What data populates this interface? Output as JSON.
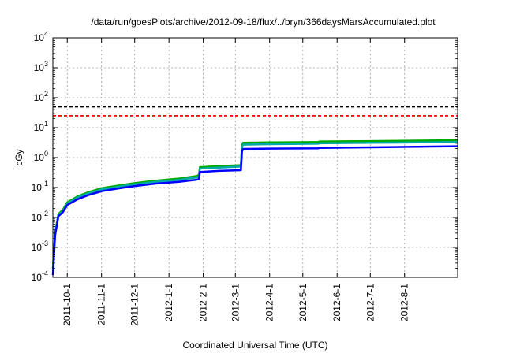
{
  "chart_data": {
    "type": "line",
    "title": "/data/run/goesPlots/archive/2012-09-18/flux/../bryn/366daysMarsAccumulated.plot",
    "xlabel": "Coordinated Universal Time (UTC)",
    "ylabel": "cGy",
    "x_range": [
      "2011-09-18",
      "2012-09-18"
    ],
    "yscale": "log",
    "ylim": [
      0.0001,
      10000
    ],
    "grid": true,
    "y_ticks": [
      {
        "base": "10",
        "exp": "-4",
        "value": 0.0001
      },
      {
        "base": "10",
        "exp": "-3",
        "value": 0.001
      },
      {
        "base": "10",
        "exp": "-2",
        "value": 0.01
      },
      {
        "base": "10",
        "exp": "-1",
        "value": 0.1
      },
      {
        "base": "10",
        "exp": "0",
        "value": 1
      },
      {
        "base": "10",
        "exp": "1",
        "value": 10
      },
      {
        "base": "10",
        "exp": "2",
        "value": 100
      },
      {
        "base": "10",
        "exp": "3",
        "value": 1000
      },
      {
        "base": "10",
        "exp": "4",
        "value": 10000
      }
    ],
    "x_ticks": [
      {
        "label": "2011-10-1",
        "date": "2011-10-01"
      },
      {
        "label": "2011-11-1",
        "date": "2011-11-01"
      },
      {
        "label": "2011-12-1",
        "date": "2011-12-01"
      },
      {
        "label": "2012-1-1",
        "date": "2012-01-01"
      },
      {
        "label": "2012-2-1",
        "date": "2012-02-01"
      },
      {
        "label": "2012-3-1",
        "date": "2012-03-01"
      },
      {
        "label": "2012-4-1",
        "date": "2012-04-01"
      },
      {
        "label": "2012-5-1",
        "date": "2012-05-01"
      },
      {
        "label": "2012-6-1",
        "date": "2012-06-01"
      },
      {
        "label": "2012-7-1",
        "date": "2012-07-01"
      },
      {
        "label": "2012-8-1",
        "date": "2012-08-01"
      }
    ],
    "reference_lines": [
      {
        "y": 50,
        "color": "#000000",
        "style": "dashed"
      },
      {
        "y": 25,
        "color": "#ff0000",
        "style": "dashed"
      }
    ],
    "series": [
      {
        "color": "#00aa00",
        "x": [
          "2011-09-18",
          "2011-09-20",
          "2011-09-23",
          "2011-09-27",
          "2011-10-01",
          "2011-10-10",
          "2011-10-20",
          "2011-11-01",
          "2011-11-15",
          "2011-12-01",
          "2011-12-20",
          "2012-01-10",
          "2012-01-25",
          "2012-01-28",
          "2012-01-29",
          "2012-02-15",
          "2012-03-06",
          "2012-03-07",
          "2012-03-08",
          "2012-04-01",
          "2012-05-15",
          "2012-05-16",
          "2012-07-01",
          "2012-09-18"
        ],
        "y": [
          0.0002,
          0.003,
          0.013,
          0.018,
          0.032,
          0.05,
          0.07,
          0.095,
          0.115,
          0.14,
          0.17,
          0.2,
          0.24,
          0.26,
          0.48,
          0.52,
          0.56,
          2.6,
          3.1,
          3.2,
          3.3,
          3.45,
          3.55,
          3.8
        ]
      },
      {
        "color": "#00aaaa",
        "x": [
          "2011-09-18",
          "2011-09-20",
          "2011-09-23",
          "2011-09-27",
          "2011-10-01",
          "2011-10-10",
          "2011-10-20",
          "2011-11-01",
          "2011-11-15",
          "2011-12-01",
          "2011-12-20",
          "2012-01-10",
          "2012-01-25",
          "2012-01-28",
          "2012-01-29",
          "2012-02-15",
          "2012-03-06",
          "2012-03-07",
          "2012-03-08",
          "2012-04-01",
          "2012-05-15",
          "2012-05-16",
          "2012-07-01",
          "2012-09-18"
        ],
        "y": [
          0.00018,
          0.0028,
          0.012,
          0.016,
          0.029,
          0.046,
          0.064,
          0.086,
          0.105,
          0.128,
          0.155,
          0.18,
          0.215,
          0.235,
          0.43,
          0.46,
          0.5,
          2.3,
          2.7,
          2.8,
          2.9,
          3.0,
          3.1,
          3.3
        ]
      },
      {
        "color": "#0000ff",
        "x": [
          "2011-09-18",
          "2011-09-20",
          "2011-09-23",
          "2011-09-27",
          "2011-10-01",
          "2011-10-10",
          "2011-10-20",
          "2011-11-01",
          "2011-11-15",
          "2011-12-01",
          "2011-12-20",
          "2012-01-10",
          "2012-01-25",
          "2012-01-28",
          "2012-01-29",
          "2012-02-15",
          "2012-03-06",
          "2012-03-07",
          "2012-03-08",
          "2012-04-01",
          "2012-05-15",
          "2012-05-16",
          "2012-07-01",
          "2012-09-18"
        ],
        "y": [
          0.00012,
          0.0025,
          0.011,
          0.015,
          0.026,
          0.04,
          0.056,
          0.075,
          0.092,
          0.112,
          0.135,
          0.155,
          0.18,
          0.19,
          0.33,
          0.36,
          0.38,
          1.6,
          1.95,
          2.0,
          2.05,
          2.1,
          2.2,
          2.4
        ]
      }
    ]
  }
}
